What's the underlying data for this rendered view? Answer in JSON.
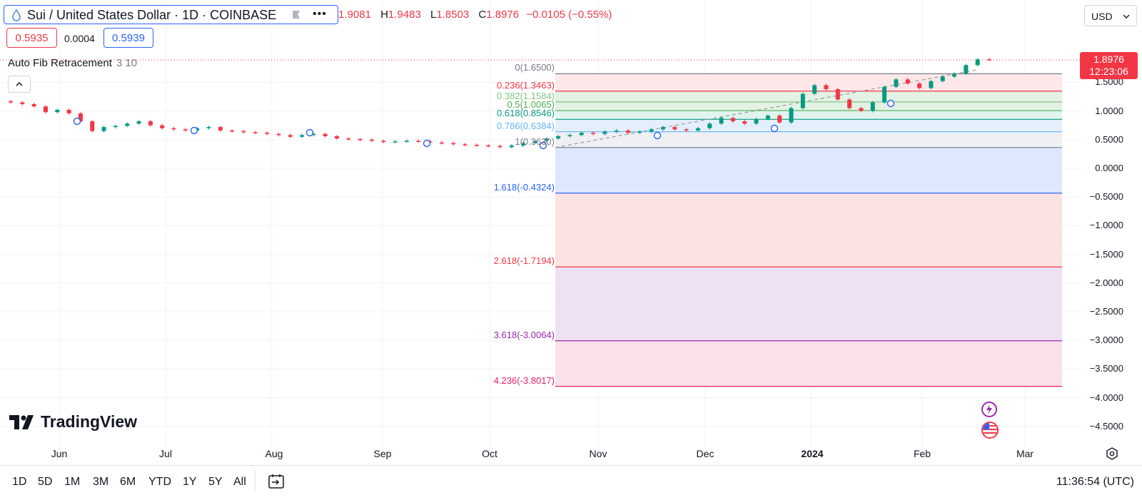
{
  "header": {
    "symbol_title": "Sui / United States Dollar · 1D · COINBASE",
    "ohlc": {
      "o_value": "1.9081",
      "h_label": "H",
      "h_value": "1.9483",
      "l_label": "L",
      "l_value": "1.8503",
      "c_label": "C",
      "c_value": "1.8976",
      "change": "−0.0105 (−0.55%)"
    },
    "sell_price": "0.5935",
    "spread": "0.0004",
    "buy_price": "0.5939",
    "currency": "USD",
    "colors": {
      "up": "#089981",
      "down": "#f23645",
      "accent": "#2962ff"
    }
  },
  "indicator": {
    "name": "Auto Fib Retracement",
    "params": "3 10"
  },
  "fib_levels": [
    {
      "label": "0(1.6500)",
      "value": 1.65,
      "color": "#787b86"
    },
    {
      "label": "0.236(1.3463)",
      "value": 1.3463,
      "color": "#f23645"
    },
    {
      "label": "0.382(1.1584)",
      "value": 1.1584,
      "color": "#81c784"
    },
    {
      "label": "0.5(1.0065)",
      "value": 1.0065,
      "color": "#4caf50"
    },
    {
      "label": "0.618(0.8546)",
      "value": 0.8546,
      "color": "#089981"
    },
    {
      "label": "0.786(0.6384)",
      "value": 0.6384,
      "color": "#64b5f6"
    },
    {
      "label": "1(0.3630)",
      "value": 0.363,
      "color": "#787b86"
    },
    {
      "label": "1.618(-0.4324)",
      "value": -0.4324,
      "color": "#2962ff"
    },
    {
      "label": "2.618(-1.7194)",
      "value": -1.7194,
      "color": "#f23645"
    },
    {
      "label": "3.618(-3.0064)",
      "value": -3.0064,
      "color": "#9c27b0"
    },
    {
      "label": "4.236(-3.8017)",
      "value": -3.8017,
      "color": "#e91e63"
    }
  ],
  "y_axis": {
    "ticks": [
      "1.5000",
      "1.0000",
      "0.5000",
      "0.0000",
      "−0.5000",
      "−1.0000",
      "−1.5000",
      "−2.0000",
      "−2.5000",
      "−3.0000",
      "−3.5000",
      "−4.0000",
      "−4.5000"
    ],
    "values": [
      1.5,
      1.0,
      0.5,
      0.0,
      -0.5,
      -1.0,
      -1.5,
      -2.0,
      -2.5,
      -3.0,
      -3.5,
      -4.0,
      -4.5
    ],
    "range": [
      -4.78,
      2.1
    ]
  },
  "x_axis": {
    "labels": [
      {
        "text": "Jun",
        "bold": false
      },
      {
        "text": "Jul",
        "bold": false
      },
      {
        "text": "Aug",
        "bold": false
      },
      {
        "text": "Sep",
        "bold": false
      },
      {
        "text": "Oct",
        "bold": false
      },
      {
        "text": "Nov",
        "bold": false
      },
      {
        "text": "Dec",
        "bold": false
      },
      {
        "text": "2024",
        "bold": true
      },
      {
        "text": "Feb",
        "bold": false
      },
      {
        "text": "Mar",
        "bold": false
      }
    ]
  },
  "last_price": {
    "value": "1.8976",
    "countdown": "12:23:06"
  },
  "bottom_bar": {
    "ranges": [
      "1D",
      "5D",
      "1M",
      "3M",
      "6M",
      "YTD",
      "1Y",
      "5Y",
      "All"
    ],
    "clock": "11:36:54 (UTC)"
  },
  "brand": "TradingView",
  "chart_data": {
    "type": "candlestick",
    "series": [
      {
        "name": "SUI/USD",
        "period": "2023-05 to 2024-02",
        "closes": [
          1.15,
          1.12,
          1.08,
          0.98,
          1.02,
          0.96,
          0.82,
          0.65,
          0.72,
          0.74,
          0.78,
          0.82,
          0.75,
          0.7,
          0.68,
          0.66,
          0.7,
          0.72,
          0.66,
          0.65,
          0.63,
          0.62,
          0.6,
          0.58,
          0.55,
          0.58,
          0.6,
          0.56,
          0.52,
          0.51,
          0.5,
          0.48,
          0.46,
          0.47,
          0.48,
          0.47,
          0.45,
          0.44,
          0.42,
          0.41,
          0.4,
          0.39,
          0.37,
          0.4,
          0.44,
          0.48,
          0.52,
          0.56,
          0.58,
          0.62,
          0.6,
          0.64,
          0.66,
          0.62,
          0.64,
          0.68,
          0.72,
          0.68,
          0.66,
          0.7,
          0.78,
          0.88,
          0.82,
          0.78,
          0.86,
          0.92,
          0.8,
          1.05,
          1.3,
          1.45,
          1.38,
          1.2,
          1.05,
          1.0,
          1.15,
          1.42,
          1.55,
          1.48,
          1.4,
          1.52,
          1.6,
          1.65,
          1.8,
          1.9,
          1.8976
        ]
      }
    ]
  }
}
